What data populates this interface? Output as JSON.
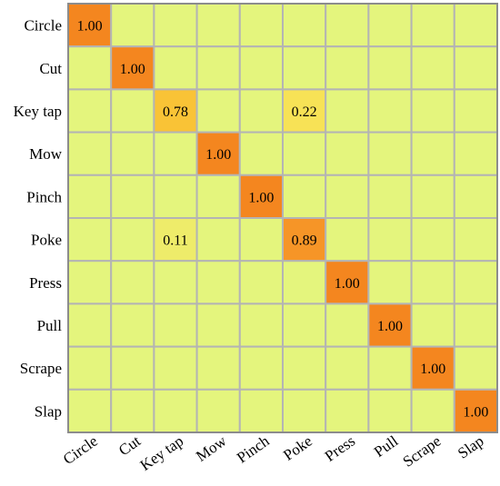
{
  "chart_data": {
    "type": "heatmap",
    "title": "",
    "xlabel": "",
    "ylabel": "",
    "categories": [
      "Circle",
      "Cut",
      "Key tap",
      "Mow",
      "Pinch",
      "Poke",
      "Press",
      "Pull",
      "Scrape",
      "Slap"
    ],
    "rows": [
      "Circle",
      "Cut",
      "Key tap",
      "Mow",
      "Pinch",
      "Poke",
      "Press",
      "Pull",
      "Scrape",
      "Slap"
    ],
    "matrix": [
      [
        1.0,
        0,
        0,
        0,
        0,
        0,
        0,
        0,
        0,
        0
      ],
      [
        0,
        1.0,
        0,
        0,
        0,
        0,
        0,
        0,
        0,
        0
      ],
      [
        0,
        0,
        0.78,
        0,
        0,
        0.22,
        0,
        0,
        0,
        0
      ],
      [
        0,
        0,
        0,
        1.0,
        0,
        0,
        0,
        0,
        0,
        0
      ],
      [
        0,
        0,
        0,
        0,
        1.0,
        0,
        0,
        0,
        0,
        0
      ],
      [
        0,
        0,
        0.11,
        0,
        0,
        0.89,
        0,
        0,
        0,
        0
      ],
      [
        0,
        0,
        0,
        0,
        0,
        0,
        1.0,
        0,
        0,
        0
      ],
      [
        0,
        0,
        0,
        0,
        0,
        0,
        0,
        1.0,
        0,
        0
      ],
      [
        0,
        0,
        0,
        0,
        0,
        0,
        0,
        0,
        1.0,
        0
      ],
      [
        0,
        0,
        0,
        0,
        0,
        0,
        0,
        0,
        0,
        1.0
      ]
    ],
    "value_range": [
      0,
      1
    ],
    "show_zero_labels": false,
    "colors": {
      "zero": "#e4f57d",
      "low": "#f7e256",
      "mid": "#f9bb2e",
      "high": "#f79a2a",
      "full": "#f4861f",
      "grid": "#b4b4b4",
      "frame": "#8c8c8c"
    }
  }
}
